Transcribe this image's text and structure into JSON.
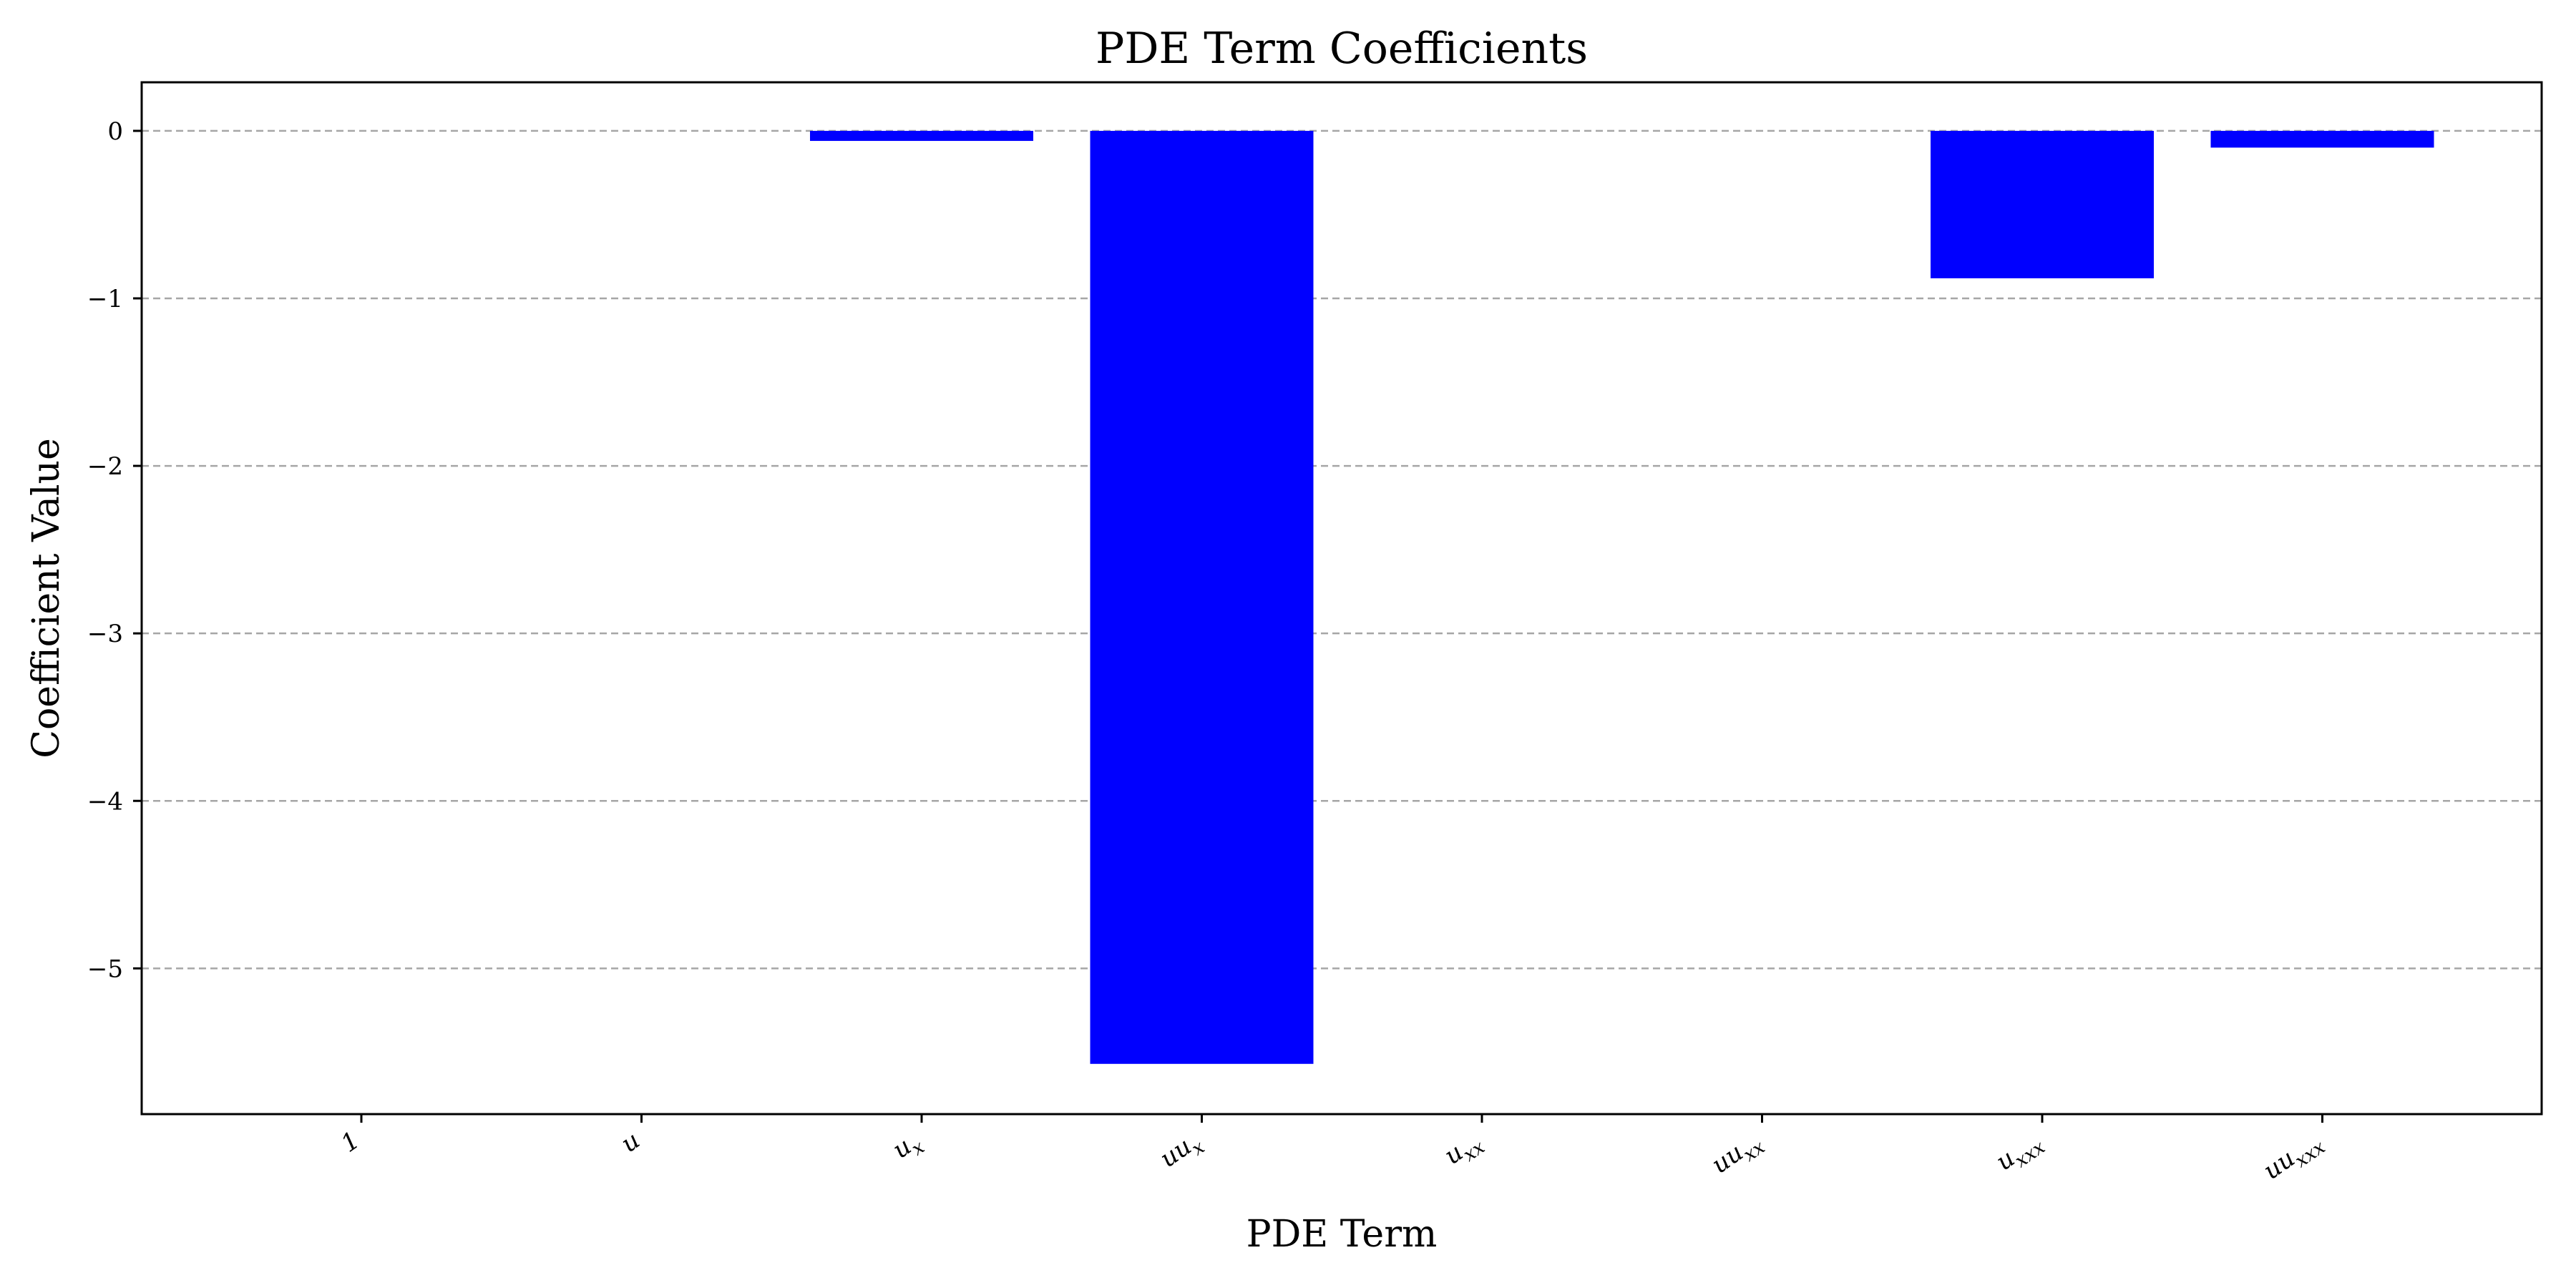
{
  "chart_data": {
    "type": "bar",
    "title": "PDE Term Coefficients",
    "xlabel": "PDE Term",
    "ylabel": "Coefficient Value",
    "categories": [
      "1",
      "u",
      "u_x",
      "uu_x",
      "u_xx",
      "uu_xx",
      "u_xxx",
      "uu_xxx"
    ],
    "values": [
      0.0,
      0.0,
      -0.06,
      -5.57,
      0.0,
      0.0,
      -0.88,
      -0.1
    ],
    "ylim": [
      -5.87,
      0.29
    ],
    "yticks": [
      0,
      -1,
      -2,
      -3,
      -4,
      -5
    ],
    "ytick_labels": [
      "0",
      "−1",
      "−2",
      "−3",
      "−4",
      "−5"
    ],
    "grid": "y-dashed",
    "legend": "none",
    "colors": {
      "bar": "#0000ff",
      "grid": "#a6a6a6",
      "axis": "#000000"
    }
  }
}
